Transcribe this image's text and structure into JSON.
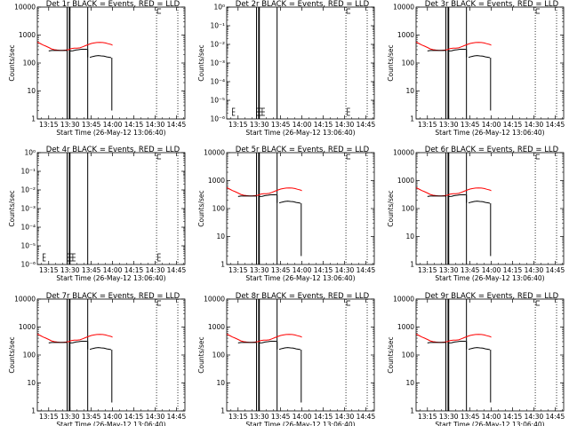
{
  "chart_data": {
    "type": "line",
    "layout": "3x3 grid",
    "common_xlabel": "Start Time (26-May-12 13:06:40)",
    "x_ticks": [
      "13:15",
      "13:30",
      "13:45",
      "14:00",
      "14:15",
      "14:30",
      "14:45"
    ],
    "x_tick_minutes": [
      15,
      30,
      45,
      60,
      75,
      90,
      105
    ],
    "x_range_minutes_after_13_00": [
      7,
      111
    ],
    "legend": {
      "black": "Events",
      "red": "LLD"
    },
    "colors": {
      "events": "#000000",
      "lld": "#ff0000"
    },
    "vertical_lines": {
      "solid_minutes": [
        28,
        29.5,
        30,
        42.5
      ],
      "dotted_minutes": [
        91,
        106
      ]
    },
    "panels": [
      {
        "title": "Det 1r BLACK = Events, RED = LLD",
        "ylabel": "Counts/sec",
        "scale": "log",
        "ylim": [
          1,
          10000
        ],
        "y_tick_labels": [
          "1",
          "10",
          "100",
          "1000",
          "10000"
        ],
        "y_tick_values": [
          1,
          10,
          100,
          1000,
          10000
        ],
        "active": true
      },
      {
        "title": "Det 2r BLACK = Events, RED = LLD",
        "ylabel": "Counts/sec",
        "scale": "log",
        "ylim": [
          1e-06,
          1
        ],
        "y_tick_labels": [
          "10⁻⁶",
          "10⁻⁵",
          "10⁻⁴",
          "10⁻³",
          "10⁻²",
          "10⁻¹",
          "10⁰"
        ],
        "y_tick_values": [
          1e-06,
          1e-05,
          0.0001,
          0.001,
          0.01,
          0.1,
          1
        ],
        "active": false
      },
      {
        "title": "Det 3r BLACK = Events, RED = LLD",
        "ylabel": "Counts/sec",
        "scale": "log",
        "ylim": [
          1,
          10000
        ],
        "y_tick_labels": [
          "1",
          "10",
          "100",
          "1000",
          "10000"
        ],
        "y_tick_values": [
          1,
          10,
          100,
          1000,
          10000
        ],
        "active": true
      },
      {
        "title": "Det 4r BLACK = Events, RED = LLD",
        "ylabel": "Counts/sec",
        "scale": "log",
        "ylim": [
          1e-06,
          1
        ],
        "y_tick_labels": [
          "10⁻⁶",
          "10⁻⁵",
          "10⁻⁴",
          "10⁻³",
          "10⁻²",
          "10⁻¹",
          "10⁰"
        ],
        "y_tick_values": [
          1e-06,
          1e-05,
          0.0001,
          0.001,
          0.01,
          0.1,
          1
        ],
        "active": false
      },
      {
        "title": "Det 5r BLACK = Events, RED = LLD",
        "ylabel": "Counts/sec",
        "scale": "log",
        "ylim": [
          1,
          10000
        ],
        "y_tick_labels": [
          "1",
          "10",
          "100",
          "1000",
          "10000"
        ],
        "y_tick_values": [
          1,
          10,
          100,
          1000,
          10000
        ],
        "active": true
      },
      {
        "title": "Det 6r BLACK = Events, RED = LLD",
        "ylabel": "Counts/sec",
        "scale": "log",
        "ylim": [
          1,
          10000
        ],
        "y_tick_labels": [
          "1",
          "10",
          "100",
          "1000",
          "10000"
        ],
        "y_tick_values": [
          1,
          10,
          100,
          1000,
          10000
        ],
        "active": true
      },
      {
        "title": "Det 7r BLACK = Events, RED = LLD",
        "ylabel": "Counts/sec",
        "scale": "log",
        "ylim": [
          1,
          10000
        ],
        "y_tick_labels": [
          "1",
          "10",
          "100",
          "1000",
          "10000"
        ],
        "y_tick_values": [
          1,
          10,
          100,
          1000,
          10000
        ],
        "active": true
      },
      {
        "title": "Det 8r BLACK = Events, RED = LLD",
        "ylabel": "Counts/sec",
        "scale": "log",
        "ylim": [
          1,
          10000
        ],
        "y_tick_labels": [
          "1",
          "10",
          "100",
          "1000",
          "10000"
        ],
        "y_tick_values": [
          1,
          10,
          100,
          1000,
          10000
        ],
        "active": true
      },
      {
        "title": "Det 9r BLACK = Events, RED = LLD",
        "ylabel": "Counts/sec",
        "scale": "log",
        "ylim": [
          1,
          10000
        ],
        "y_tick_labels": [
          "1",
          "10",
          "100",
          "1000",
          "10000"
        ],
        "y_tick_values": [
          1,
          10,
          100,
          1000,
          10000
        ],
        "active": true
      }
    ],
    "series": [
      {
        "name": "LLD",
        "color": "#ff0000",
        "x_minutes": [
          7,
          9,
          11,
          13,
          15,
          17,
          19,
          21,
          23,
          25,
          27,
          29,
          31,
          33,
          35,
          37,
          39,
          41,
          43,
          45,
          47,
          49,
          51,
          53,
          55,
          57,
          59,
          60
        ],
        "y": [
          560,
          500,
          440,
          400,
          360,
          320,
          300,
          290,
          285,
          285,
          290,
          300,
          330,
          340,
          340,
          350,
          380,
          420,
          460,
          500,
          520,
          540,
          550,
          540,
          520,
          490,
          460,
          430
        ]
      },
      {
        "name": "Events",
        "color": "#000000",
        "segments": [
          {
            "x_minutes": [
              15,
              17,
              19,
              21,
              23,
              25,
              27,
              28
            ],
            "y": [
              270,
              280,
              280,
              280,
              280,
              280,
              280,
              280
            ]
          },
          {
            "x_minutes": [
              30,
              32,
              34,
              36,
              38,
              40,
              42
            ],
            "y": [
              270,
              275,
              290,
              300,
              310,
              310,
              310
            ]
          },
          {
            "x_minutes": [
              44,
              46,
              48,
              50,
              52,
              54,
              56,
              58,
              59
            ],
            "y": [
              160,
              170,
              180,
              185,
              180,
              175,
              165,
              160,
              155
            ]
          }
        ],
        "drops": [
          {
            "x_minutes": 42.5,
            "from": 310,
            "to": 160
          },
          {
            "x_minutes": 59.5,
            "from": 155,
            "to": 2
          }
        ]
      }
    ],
    "inactive_marker_minutes": [
      11,
      28,
      30,
      32,
      92
    ]
  }
}
